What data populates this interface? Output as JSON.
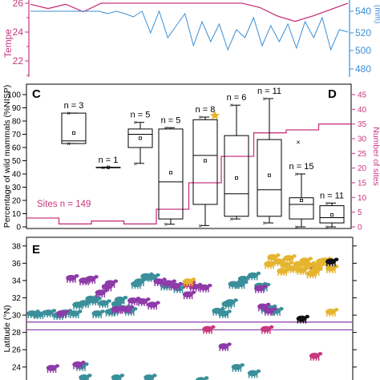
{
  "panels": {
    "top": {
      "left_axis_label": "Tempe",
      "right_axis_label": "(mm)",
      "left_ticks": [
        "26",
        "24",
        "22"
      ],
      "right_ticks": [
        "540",
        "520",
        "500",
        "480"
      ],
      "colors": {
        "left": "#c8377f",
        "right": "#3a8fd6"
      }
    },
    "c": {
      "label": "C"
    },
    "d": {
      "label": "D"
    },
    "e": {
      "label": "E"
    }
  },
  "chart_data": [
    {
      "type": "line",
      "panel": "top (partially visible)",
      "series": [
        {
          "axis": "left",
          "values": [
            26.6,
            26.2,
            26.6,
            25.9,
            26.7,
            26.7,
            26.7,
            26.7,
            26.7,
            26.7,
            26.7,
            26.7,
            26.7,
            26.3,
            25.5,
            25.0,
            25.5,
            26.1,
            26.7
          ]
        },
        {
          "axis": "right",
          "values": [
            548,
            548,
            548,
            548,
            548,
            548,
            548,
            548,
            548,
            545,
            548,
            545,
            541,
            548,
            521,
            548,
            515,
            530,
            545,
            505,
            535,
            510,
            532,
            500,
            525,
            515,
            540,
            505,
            530,
            510,
            532,
            502,
            535,
            515,
            540,
            500,
            525,
            522
          ]
        }
      ],
      "ylim_left": [
        21.3,
        26.7
      ],
      "ylim_right": [
        476,
        548
      ]
    },
    {
      "type": "box",
      "panel": "C",
      "ylabel": "Percentage of wild mammals (%NISP)",
      "ylim": [
        0,
        100
      ],
      "yticks": [
        0,
        10,
        20,
        30,
        40,
        50,
        60,
        70,
        80,
        90,
        100
      ],
      "boxes": [
        {
          "n_label": "n = 3",
          "min": 63,
          "q1": 63,
          "median": 65,
          "q3": 86,
          "max": 86,
          "mean": 71
        },
        {
          "n_label": "n = 1",
          "min": 45,
          "q1": 45,
          "median": 45,
          "q3": 45,
          "max": 45,
          "mean": 45
        },
        {
          "n_label": "n = 5",
          "min": 48,
          "q1": 60,
          "median": 70,
          "q3": 74,
          "max": 79,
          "mean": 67
        },
        {
          "n_label": "n = 5",
          "min": 2,
          "q1": 6,
          "median": 34,
          "q3": 74,
          "max": 75,
          "mean": 41
        },
        {
          "n_label": "n = 8",
          "min": 1,
          "q1": 17,
          "median": 54,
          "q3": 81,
          "max": 83,
          "mean": 50
        },
        {
          "n_label": "n = 6",
          "min": 6,
          "q1": 8,
          "median": 25,
          "q3": 69,
          "max": 92,
          "mean": 37
        },
        {
          "n_label": "n = 11",
          "min": 3,
          "q1": 8,
          "median": 28,
          "q3": 66,
          "max": 97,
          "mean": 39
        },
        {
          "n_label": "n = 15",
          "min": 0,
          "q1": 6,
          "median": 17,
          "q3": 22,
          "max": 40,
          "mean": 20
        },
        {
          "n_label": "n = 11",
          "min": 0,
          "q1": 3,
          "median": 7,
          "q3": 16,
          "max": 18,
          "mean": 9
        }
      ],
      "outliers": [
        {
          "box": 8,
          "value": 64
        }
      ]
    },
    {
      "type": "line",
      "panel": "D",
      "ylabel": "Number of sites",
      "ylim": [
        0,
        45
      ],
      "yticks": [
        0,
        5,
        10,
        15,
        20,
        25,
        30,
        35,
        40,
        45
      ],
      "annotation": "Sites n = 149",
      "series": [
        {
          "step": true,
          "values": [
            3,
            3,
            1,
            1,
            2,
            2,
            1,
            1,
            6,
            6,
            15,
            15,
            24,
            24,
            32,
            32,
            33,
            33,
            35,
            35
          ]
        }
      ]
    },
    {
      "type": "scatter",
      "panel": "E",
      "ylabel": "Latitude (°N)",
      "ylim": [
        22.5,
        39
      ],
      "yticks": [
        24,
        26,
        28,
        30,
        32,
        34,
        36,
        38
      ],
      "reference_lines": [
        28.3,
        29.2
      ],
      "groups": [
        {
          "color": "#3a8f9a",
          "points": [
            [
              1,
              30.2
            ],
            [
              3,
              30.1
            ],
            [
              6,
              30.3
            ],
            [
              9,
              30.0
            ],
            [
              11,
              30.3
            ],
            [
              14,
              30.2
            ],
            [
              15,
              31.2
            ],
            [
              17,
              31.4
            ],
            [
              19,
              31.9
            ],
            [
              20,
              31.7
            ],
            [
              21,
              30.2
            ],
            [
              23,
              31.4
            ],
            [
              25,
              30.4
            ],
            [
              26,
              30.5
            ],
            [
              27,
              31.3
            ],
            [
              28,
              31.8
            ],
            [
              29,
              30.8
            ],
            [
              31,
              30.5
            ],
            [
              33,
              33.6
            ],
            [
              34,
              33.9
            ],
            [
              36,
              34.5
            ],
            [
              38,
              34.4
            ],
            [
              42,
              33.4
            ],
            [
              46,
              33.1
            ],
            [
              58,
              30.5
            ],
            [
              60,
              30.2
            ],
            [
              61,
              31.3
            ],
            [
              62,
              31.5
            ],
            [
              63,
              33.6
            ],
            [
              65,
              33.6
            ],
            [
              66,
              34.2
            ],
            [
              69,
              34.6
            ],
            [
              71,
              33.4
            ],
            [
              72,
              33.3
            ],
            [
              73,
              30.7
            ],
            [
              74,
              30.8
            ],
            [
              76,
              30.5
            ],
            [
              16,
              24.1
            ],
            [
              17,
              22.8
            ],
            [
              27,
              22.8
            ],
            [
              37,
              22.8
            ],
            [
              53,
              22.5
            ],
            [
              64,
              24.0
            ],
            [
              69,
              23.3
            ]
          ]
        },
        {
          "color": "#8e3aa8",
          "points": [
            [
              10,
              30.2
            ],
            [
              13,
              34.3
            ],
            [
              17,
              34.0
            ],
            [
              19,
              34.2
            ],
            [
              22,
              32.6
            ],
            [
              24,
              33.3
            ],
            [
              25,
              33.7
            ],
            [
              27,
              30.7
            ],
            [
              30,
              30.7
            ],
            [
              32,
              31.7
            ],
            [
              35,
              31.6
            ],
            [
              38,
              31.2
            ],
            [
              40,
              33.9
            ],
            [
              43,
              33.7
            ],
            [
              45,
              33.4
            ],
            [
              49,
              32.4
            ],
            [
              51,
              33.3
            ],
            [
              54,
              33.2
            ],
            [
              71,
              33.1
            ],
            [
              72,
              31.0
            ],
            [
              74,
              30.5
            ],
            [
              88,
              35.5
            ],
            [
              60,
              26.4
            ],
            [
              7,
              23.9
            ],
            [
              15,
              24.3
            ]
          ]
        },
        {
          "color": "#c8377f",
          "points": [
            [
              49,
              33.6
            ],
            [
              55,
              28.4
            ],
            [
              73,
              28.4
            ],
            [
              88,
              25.3
            ]
          ]
        },
        {
          "color": "#e5b530",
          "points": [
            [
              74,
              35.9
            ],
            [
              75,
              36.7
            ],
            [
              77,
              36.2
            ],
            [
              78,
              35.1
            ],
            [
              79,
              35.8
            ],
            [
              80,
              36.6
            ],
            [
              81,
              35.4
            ],
            [
              83,
              35.9
            ],
            [
              84,
              35.2
            ],
            [
              85,
              36.3
            ],
            [
              86,
              35.8
            ],
            [
              87,
              34.8
            ],
            [
              88,
              35.1
            ],
            [
              89,
              35.7
            ],
            [
              90,
              36.2
            ],
            [
              91,
              36.3
            ],
            [
              93,
              35.4
            ],
            [
              93,
              30.4
            ],
            [
              49,
              33.9
            ]
          ]
        },
        {
          "color": "#111111",
          "points": [
            [
              93,
              36.2
            ],
            [
              84,
              29.6
            ]
          ]
        }
      ]
    }
  ]
}
